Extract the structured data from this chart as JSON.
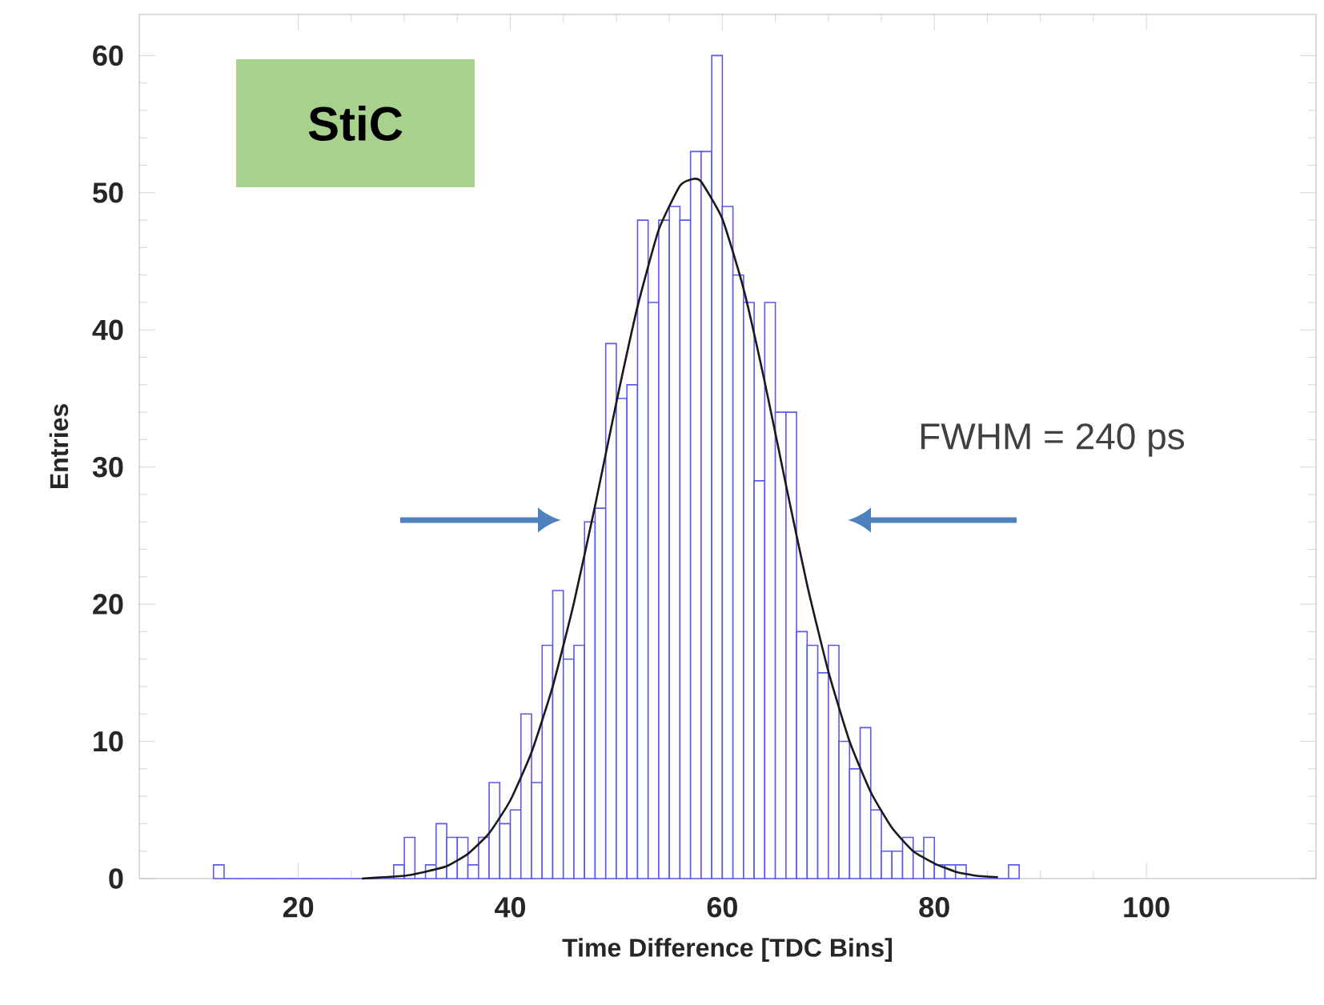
{
  "chart_data": {
    "type": "histogram",
    "xlabel": "Time Difference [TDC Bins]",
    "ylabel": "Entries",
    "annotations": [
      "StiC",
      "FWHM = 240 ps"
    ],
    "series": [
      {
        "color": "#5a5ae6",
        "bins": [
          12,
          13,
          14,
          15,
          16,
          17,
          18,
          19,
          20,
          21,
          22,
          23,
          24,
          25,
          26,
          27,
          28,
          29,
          30,
          31,
          32,
          33,
          34,
          35,
          36,
          37,
          38,
          39,
          40,
          41,
          42,
          43,
          44,
          45,
          46,
          47,
          48,
          49,
          50,
          51,
          52,
          53,
          54,
          55,
          56,
          57,
          58,
          59,
          60,
          61,
          62,
          63,
          64,
          65,
          66,
          67,
          68,
          69,
          70,
          71,
          72,
          73,
          74,
          75,
          76,
          77,
          78,
          79,
          80,
          81,
          82,
          83,
          84,
          85,
          86,
          87,
          88
        ],
        "values": [
          1,
          0,
          0,
          0,
          0,
          0,
          0,
          0,
          0,
          0,
          0,
          0,
          0,
          0,
          0,
          0,
          0,
          1,
          3,
          0,
          1,
          4,
          3,
          3,
          1,
          3,
          7,
          4,
          5,
          12,
          7,
          17,
          21,
          16,
          17,
          26,
          27,
          39,
          35,
          36,
          48,
          42,
          48,
          49,
          48,
          53,
          53,
          60,
          49,
          44,
          42,
          29,
          42,
          34,
          34,
          18,
          17,
          15,
          17,
          10,
          8,
          11,
          5,
          2,
          2,
          3,
          2,
          3,
          1,
          1,
          1,
          0,
          0,
          0,
          0,
          1
        ]
      },
      {
        "type": "line",
        "color": "#1a1a1a",
        "x": [
          26,
          28,
          30,
          32,
          34,
          36,
          38,
          40,
          42,
          44,
          46,
          48,
          50,
          52,
          54,
          56,
          57.2,
          58,
          60,
          62,
          64,
          66,
          68,
          70,
          72,
          74,
          76,
          78,
          80,
          82,
          84,
          86
        ],
        "values": [
          0.0,
          0.1,
          0.2,
          0.5,
          0.9,
          1.8,
          3.3,
          5.7,
          9.2,
          14.0,
          20.1,
          27.2,
          34.7,
          41.7,
          47.3,
          50.5,
          51.0,
          50.8,
          48.1,
          43.0,
          36.2,
          28.7,
          21.4,
          15.1,
          10.0,
          6.3,
          3.7,
          2.0,
          1.1,
          0.5,
          0.2,
          0.1
        ]
      }
    ],
    "xlim": [
      5,
      116
    ],
    "ylim": [
      0,
      63
    ],
    "xticks": [
      20,
      40,
      60,
      80,
      100
    ],
    "yticks": [
      0,
      10,
      20,
      30,
      40,
      50,
      60
    ]
  }
}
